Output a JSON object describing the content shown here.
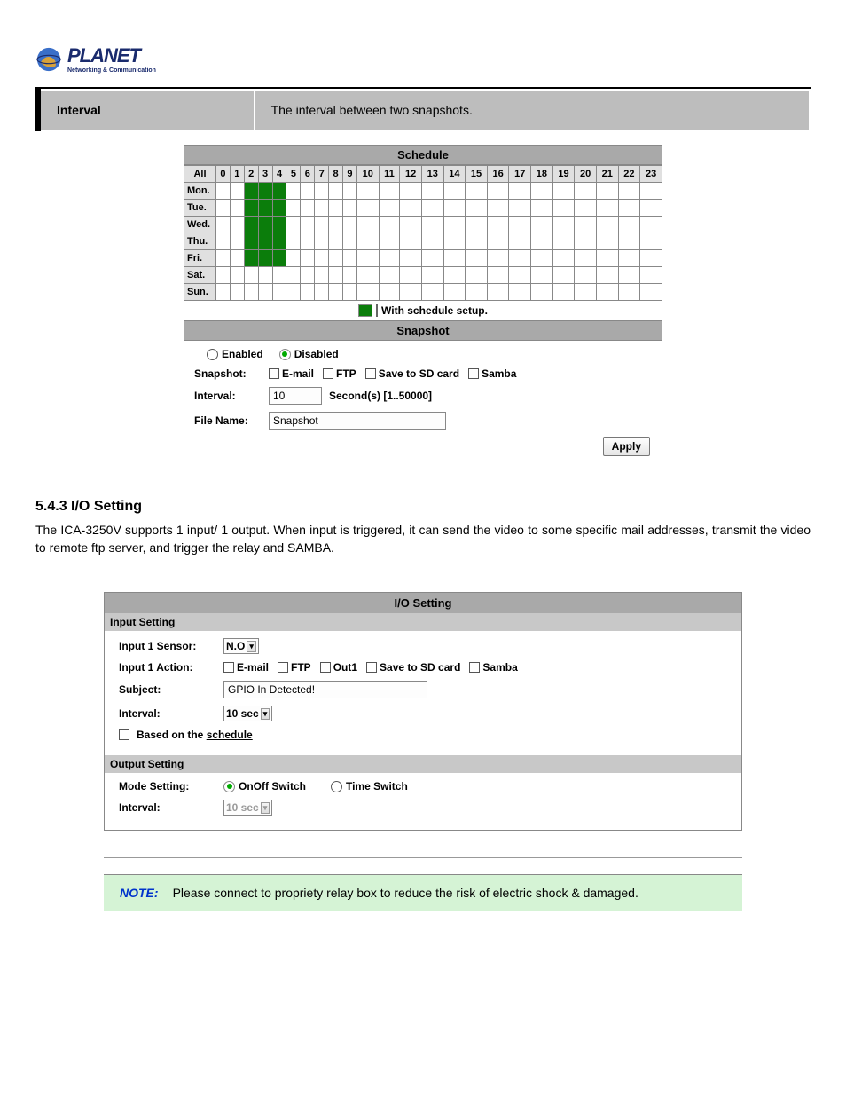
{
  "logo": {
    "name": "PLANET",
    "tagline": "Networking & Communication"
  },
  "intervalRow": {
    "label": "Interval",
    "desc": "The interval between two snapshots."
  },
  "schedule": {
    "title": "Schedule",
    "allLabel": "All",
    "hours": [
      "0",
      "1",
      "2",
      "3",
      "4",
      "5",
      "6",
      "7",
      "8",
      "9",
      "10",
      "11",
      "12",
      "13",
      "14",
      "15",
      "16",
      "17",
      "18",
      "19",
      "20",
      "21",
      "22",
      "23"
    ],
    "days": [
      "Mon.",
      "Tue.",
      "Wed.",
      "Thu.",
      "Fri.",
      "Sat.",
      "Sun."
    ],
    "greenHours": [
      2,
      3,
      4
    ],
    "greenDays": [
      0,
      1,
      2,
      3,
      4
    ],
    "legend": "With schedule setup."
  },
  "snapshot": {
    "title": "Snapshot",
    "enabled": "Enabled",
    "disabled": "Disabled",
    "labels": {
      "snapshot": "Snapshot:",
      "interval": "Interval:",
      "filename": "File Name:"
    },
    "checks": [
      "E-mail",
      "FTP",
      "Save to SD card",
      "Samba"
    ],
    "intervalValue": "10",
    "intervalSuffix": "Second(s) [1..50000]",
    "filenameValue": "Snapshot",
    "apply": "Apply"
  },
  "section": {
    "heading": "5.4.3 I/O Setting",
    "body": "The ICA-3250V supports 1 input/ 1 output. When input is triggered, it can send the video to some specific mail addresses, transmit the video to remote ftp server, and trigger the relay and SAMBA."
  },
  "io": {
    "title": "I/O Setting",
    "inputSub": "Input Setting",
    "outputSub": "Output Setting",
    "labels": {
      "sensor": "Input 1 Sensor:",
      "action": "Input 1 Action:",
      "subject": "Subject:",
      "interval": "Interval:",
      "based": "Based on the ",
      "basedLink": "schedule",
      "mode": "Mode Setting:"
    },
    "sensorVal": "N.O",
    "actionChecks": [
      "E-mail",
      "FTP",
      "Out1",
      "Save to SD card",
      "Samba"
    ],
    "subjectVal": "GPIO In Detected!",
    "intervalVal": "10 sec",
    "modeOpts": [
      "OnOff Switch",
      "Time Switch"
    ],
    "outIntervalVal": "10 sec"
  },
  "note": {
    "label": "NOTE:",
    "text": "Please connect to propriety relay box to reduce the risk of electric shock & damaged."
  }
}
